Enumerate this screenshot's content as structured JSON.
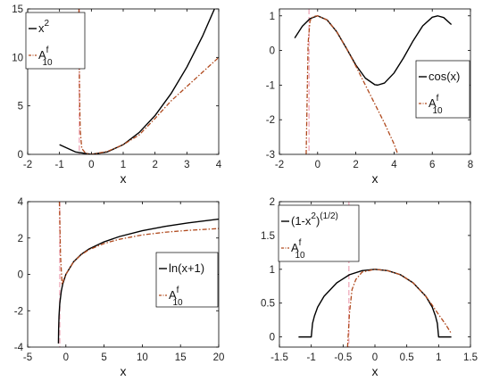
{
  "colors": {
    "exact": "#000000",
    "approx": "#b04a1e",
    "pole": "#f2b8c6"
  },
  "chart_data": [
    {
      "type": "line",
      "xlabel": "x",
      "xlim": [
        -2,
        4
      ],
      "ylim": [
        0,
        15
      ],
      "xticks": [
        "-2",
        "-1",
        "0",
        "1",
        "2",
        "3",
        "4"
      ],
      "yticks": [
        "0",
        "5",
        "10",
        "15"
      ],
      "xtick_values": [
        -2,
        -1,
        0,
        1,
        2,
        3,
        4
      ],
      "ytick_values": [
        0,
        5,
        10,
        15
      ],
      "grid": false,
      "legend_position": "top-left",
      "pole_x": -0.38,
      "series": [
        {
          "name": "x",
          "name_sup": "2",
          "name_sub": "",
          "style": "solid",
          "x": [
            -1,
            -0.5,
            0,
            0.5,
            1,
            1.5,
            2,
            2.5,
            3,
            3.5,
            4
          ],
          "y": [
            1,
            0.25,
            0,
            0.25,
            1,
            2.25,
            4,
            6.25,
            9,
            12.25,
            16
          ]
        },
        {
          "name": "A",
          "name_sup": "f",
          "name_sub": "10",
          "style": "dashdot",
          "x": [
            -0.39,
            -0.37,
            -0.35,
            -0.3,
            -0.2,
            -0.1,
            0,
            0.5,
            1,
            1.5,
            2,
            2.5,
            3,
            3.5,
            4
          ],
          "y": [
            15,
            6,
            2.5,
            0.6,
            0.2,
            0.05,
            0,
            0.3,
            1,
            2,
            3.7,
            5.5,
            7,
            8.5,
            10
          ]
        }
      ]
    },
    {
      "type": "line",
      "xlabel": "x",
      "xlim": [
        -2,
        8
      ],
      "ylim": [
        -3,
        1.2
      ],
      "xticks": [
        "-2",
        "0",
        "2",
        "4",
        "6",
        "8"
      ],
      "yticks": [
        "-3",
        "-2",
        "-1",
        "0",
        "1"
      ],
      "xtick_values": [
        -2,
        0,
        2,
        4,
        6,
        8
      ],
      "ytick_values": [
        -3,
        -2,
        -1,
        0,
        1
      ],
      "grid": false,
      "legend_position": "right",
      "pole_x": -0.45,
      "series": [
        {
          "name": "cos(x)",
          "name_sup": "",
          "name_sub": "",
          "style": "solid",
          "x": [
            -1.2,
            -0.8,
            -0.4,
            0,
            0.5,
            1,
            1.5,
            2,
            2.5,
            3,
            3.14,
            3.5,
            4,
            4.5,
            5,
            5.5,
            6,
            6.28,
            6.6,
            7
          ],
          "y": [
            0.36,
            0.7,
            0.92,
            1,
            0.88,
            0.54,
            0.07,
            -0.42,
            -0.8,
            -0.99,
            -1,
            -0.94,
            -0.65,
            -0.21,
            0.28,
            0.71,
            0.96,
            1,
            0.95,
            0.75
          ]
        },
        {
          "name": "A",
          "name_sup": "f",
          "name_sub": "10",
          "style": "dashdot",
          "x": [
            -0.6,
            -0.5,
            -0.4,
            -0.3,
            -0.15,
            0,
            0.5,
            1,
            1.5,
            2,
            2.5,
            3,
            3.5,
            4,
            4.2
          ],
          "y": [
            -3,
            0.2,
            0.85,
            0.95,
            0.99,
            1,
            0.88,
            0.54,
            0.07,
            -0.45,
            -1.0,
            -1.55,
            -2.1,
            -2.7,
            -3
          ]
        }
      ]
    },
    {
      "type": "line",
      "xlabel": "x",
      "xlim": [
        -5,
        20
      ],
      "ylim": [
        -4,
        4
      ],
      "xticks": [
        "-5",
        "0",
        "5",
        "10",
        "15",
        "20"
      ],
      "yticks": [
        "-4",
        "-2",
        "0",
        "2",
        "4"
      ],
      "xtick_values": [
        -5,
        0,
        5,
        10,
        15,
        20
      ],
      "ytick_values": [
        -4,
        -2,
        0,
        2,
        4
      ],
      "grid": false,
      "legend_position": "right",
      "pole_x": -0.8,
      "series": [
        {
          "name": "ln(x+1)",
          "name_sup": "",
          "name_sub": "",
          "style": "solid",
          "x": [
            -0.977,
            -0.95,
            -0.9,
            -0.8,
            -0.6,
            -0.4,
            0,
            1,
            2,
            3,
            5,
            7,
            10,
            13,
            16,
            20
          ],
          "y": [
            -3.8,
            -3.0,
            -2.3,
            -1.61,
            -0.92,
            -0.51,
            0,
            0.69,
            1.1,
            1.39,
            1.79,
            2.08,
            2.4,
            2.64,
            2.83,
            3.04
          ]
        },
        {
          "name": "A",
          "name_sup": "f",
          "name_sub": "10",
          "style": "dashdot",
          "x": [
            -0.85,
            -0.7,
            -0.5,
            -0.3,
            0,
            1,
            2,
            3,
            5,
            7,
            10,
            13,
            16,
            20
          ],
          "y": [
            4,
            1.0,
            -0.55,
            -0.3,
            0,
            0.68,
            1.08,
            1.35,
            1.7,
            1.93,
            2.17,
            2.32,
            2.42,
            2.52
          ]
        }
      ]
    },
    {
      "type": "line",
      "xlabel": "x",
      "xlim": [
        -1.5,
        1.5
      ],
      "ylim": [
        -0.15,
        2
      ],
      "xticks": [
        "-1.5",
        "-1",
        "-0.5",
        "0",
        "0.5",
        "1",
        "1.5"
      ],
      "yticks": [
        "0",
        "0.5",
        "1",
        "1.5",
        "2"
      ],
      "xtick_values": [
        -1.5,
        -1,
        -0.5,
        0,
        0.5,
        1,
        1.5
      ],
      "ytick_values": [
        0,
        0.5,
        1,
        1.5,
        2
      ],
      "grid": false,
      "legend_position": "top-left",
      "pole_x": -0.41,
      "series": [
        {
          "name": "(1-x",
          "name_sup": "2",
          "name_tail": ")",
          "name_tail_sup": "(1/2)",
          "name_sub": "",
          "style": "solid",
          "x": [
            -1.2,
            -1.0,
            -0.98,
            -0.95,
            -0.9,
            -0.8,
            -0.6,
            -0.4,
            -0.2,
            0,
            0.2,
            0.4,
            0.6,
            0.8,
            0.9,
            0.95,
            0.98,
            1.0,
            1.2
          ],
          "y": [
            0,
            0,
            0.2,
            0.31,
            0.44,
            0.6,
            0.8,
            0.92,
            0.98,
            1,
            0.98,
            0.92,
            0.8,
            0.6,
            0.44,
            0.31,
            0.2,
            0,
            0
          ]
        },
        {
          "name": "A",
          "name_sup": "f",
          "name_sub": "10",
          "style": "dashdot",
          "x": [
            -0.43,
            -0.4,
            -0.36,
            -0.3,
            -0.2,
            0,
            0.2,
            0.4,
            0.6,
            0.8,
            0.9,
            1.0,
            1.1,
            1.2
          ],
          "y": [
            -0.15,
            0.35,
            0.7,
            0.85,
            0.96,
            1,
            0.98,
            0.92,
            0.8,
            0.6,
            0.47,
            0.33,
            0.2,
            0.05
          ]
        }
      ]
    }
  ]
}
